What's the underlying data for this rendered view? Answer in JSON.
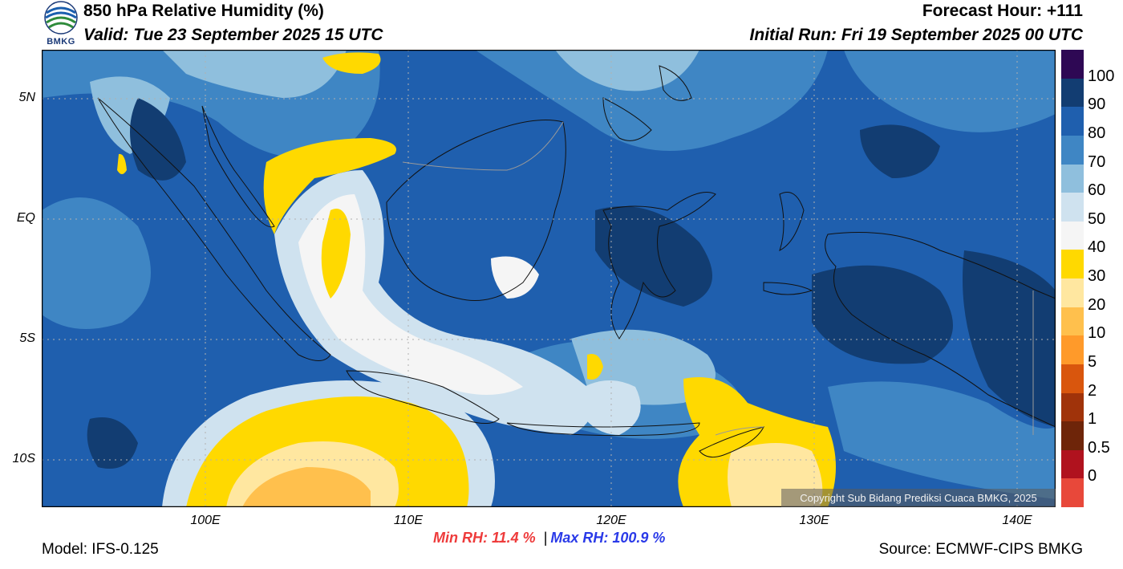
{
  "header": {
    "title": "850 hPa Relative Humidity (%)",
    "valid": "Valid: Tue 23 September 2025 15 UTC",
    "forecast_hour": "Forecast Hour: +111",
    "initial_run": "Initial Run: Fri 19 September 2025 00 UTC",
    "logo_text": "BMKG"
  },
  "map": {
    "lat_labels": [
      "5N",
      "EQ",
      "5S",
      "10S"
    ],
    "lon_labels": [
      "100E",
      "110E",
      "120E",
      "130E",
      "140E"
    ],
    "copyright": "Copyright Sub Bidang Prediksi Cuaca BMKG, 2025"
  },
  "colorbar": {
    "labels": [
      "100",
      "90",
      "80",
      "70",
      "60",
      "50",
      "40",
      "30",
      "20",
      "10",
      "5",
      "2",
      "1",
      "0.5",
      "0"
    ],
    "colors": [
      "#2e0854",
      "#123d72",
      "#1f5fae",
      "#3f86c4",
      "#8fbfdd",
      "#cfe2ef",
      "#f5f5f5",
      "#ffd900",
      "#ffe7a0",
      "#ffc04d",
      "#ff9a2a",
      "#d9560d",
      "#a0330a",
      "#6e2509",
      "#b0121e",
      "#e8483a"
    ]
  },
  "footer": {
    "model": "Model: IFS-0.125",
    "min_rh": "Min RH:  11.4 %",
    "separator": "|",
    "max_rh": "Max RH: 100.9 %",
    "source": "Source: ECMWF-CIPS BMKG"
  }
}
